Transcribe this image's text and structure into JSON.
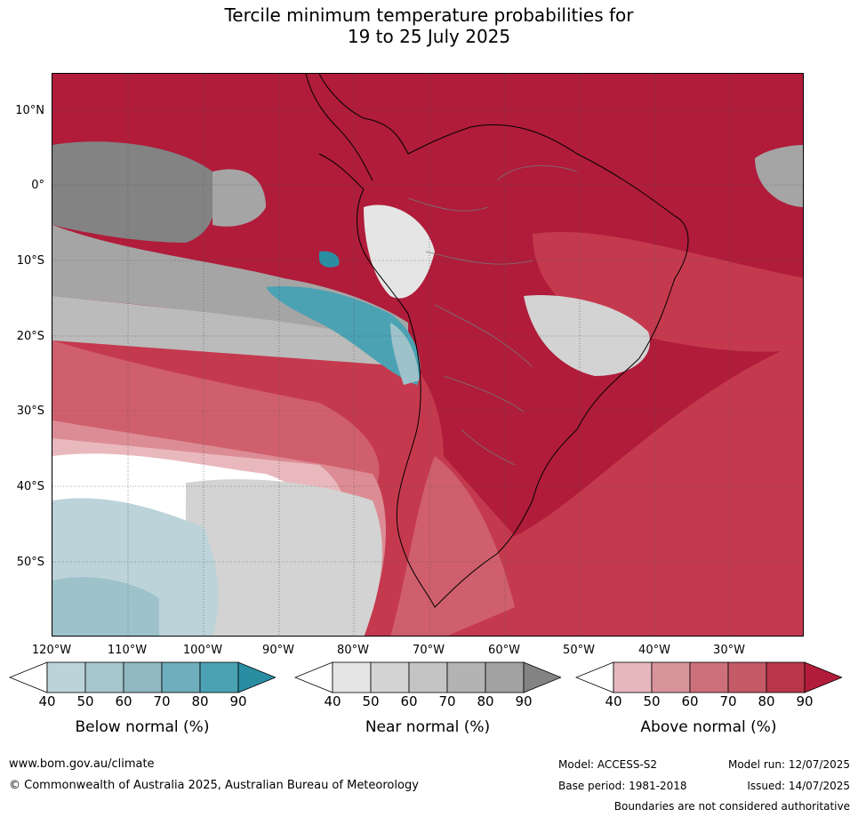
{
  "title": {
    "line1": "Tercile minimum temperature probabilities for",
    "line2": "19 to 25 July 2025"
  },
  "map": {
    "lat_labels": [
      "10°N",
      "0°",
      "10°S",
      "20°S",
      "30°S",
      "40°S",
      "50°S"
    ],
    "lon_labels": [
      "120°W",
      "110°W",
      "100°W",
      "90°W",
      "80°W",
      "70°W",
      "60°W",
      "50°W",
      "40°W",
      "30°W"
    ],
    "colors": {
      "above_90": "#b01c3a",
      "above_80": "#c5394e",
      "above_70": "#cf5f6c",
      "above_60": "#dc8c94",
      "above_50": "#e8b8bd",
      "near_90": "#838383",
      "near_80": "#a5a5a5",
      "near_70": "#bbbbbb",
      "near_60": "#d3d3d3",
      "below_60": "#9ec2ca",
      "below_50": "#bcd3da",
      "below_80": "#4ba2b3",
      "below_90": "#2a8ea3",
      "neutral": "#ffffff"
    }
  },
  "legends": [
    {
      "title": "Below normal (%)",
      "ticks": [
        "40",
        "50",
        "60",
        "70",
        "80",
        "90"
      ],
      "colors": [
        "#bcd3da",
        "#a6c6cd",
        "#8fb8c1",
        "#6faebc",
        "#4ba2b3",
        "#2a8ea3"
      ]
    },
    {
      "title": "Near normal (%)",
      "ticks": [
        "40",
        "50",
        "60",
        "70",
        "80",
        "90"
      ],
      "colors": [
        "#e5e5e5",
        "#d3d3d3",
        "#c4c4c4",
        "#b3b3b3",
        "#a2a2a2",
        "#838383"
      ]
    },
    {
      "title": "Above normal (%)",
      "ticks": [
        "40",
        "50",
        "60",
        "70",
        "80",
        "90"
      ],
      "colors": [
        "#e4b8bd",
        "#d9949b",
        "#cd7079",
        "#c35a66",
        "#b93648",
        "#b01c3a"
      ]
    }
  ],
  "footer": {
    "website": "www.bom.gov.au/climate",
    "copyright": "© Commonwealth of Australia 2025, Australian Bureau of Meteorology",
    "model": "Model: ACCESS-S2",
    "base_period": "Base period: 1981-2018",
    "model_run": "Model run: 12/07/2025",
    "issued": "Issued: 14/07/2025",
    "disclaimer": "Boundaries are not considered authoritative"
  }
}
